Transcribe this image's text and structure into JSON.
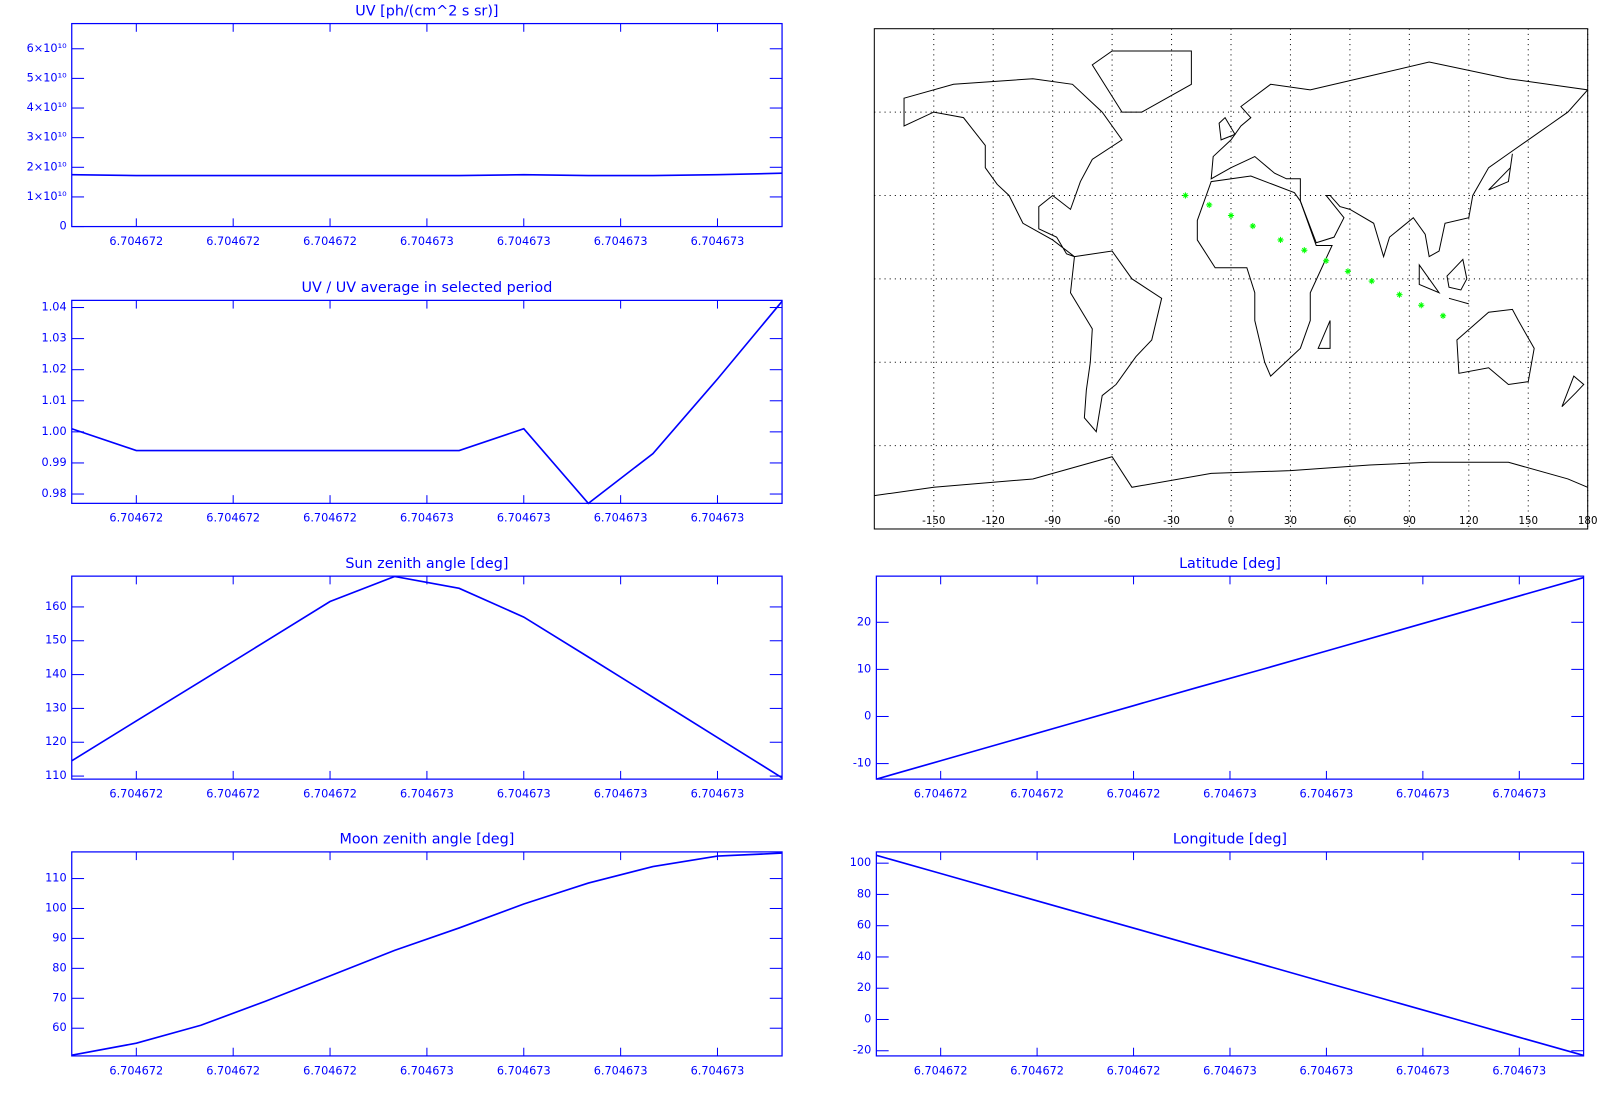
{
  "chart_data": [
    {
      "type": "line",
      "title": "UV [ph/(cm^2 s sr)]",
      "x": [
        6.704672,
        6.7046721,
        6.7046722,
        6.7046723,
        6.7046724,
        6.7046725,
        6.7046726,
        6.7046727,
        6.7046728,
        6.7046729,
        6.704673,
        6.7046731
      ],
      "values": [
        17500000000,
        17200000000,
        17200000000,
        17200000000,
        17200000000,
        17200000000,
        17200000000,
        17500000000,
        17200000000,
        17200000000,
        17500000000,
        18000000000
      ],
      "color": "#0000ff",
      "xlim": [
        6.704672,
        6.7046731
      ],
      "xticks": [
        {
          "value": 6.7046721,
          "label": "6.704672"
        },
        {
          "value": 6.70467225,
          "label": "6.704672"
        },
        {
          "value": 6.7046724,
          "label": "6.704672"
        },
        {
          "value": 6.70467255,
          "label": "6.704673"
        },
        {
          "value": 6.7046727,
          "label": "6.704673"
        },
        {
          "value": 6.70467285,
          "label": "6.704673"
        },
        {
          "value": 6.704673,
          "label": "6.704673"
        }
      ],
      "ylim": [
        0,
        68500000000
      ],
      "yticks": [
        0,
        {
          "value": 10000000000,
          "label": "1×10¹⁰"
        },
        {
          "value": 20000000000,
          "label": "2×10¹⁰"
        },
        {
          "value": 30000000000,
          "label": "3×10¹⁰"
        },
        {
          "value": 40000000000,
          "label": "4×10¹⁰"
        },
        {
          "value": 50000000000,
          "label": "5×10¹⁰"
        },
        {
          "value": 60000000000,
          "label": "6×10¹⁰"
        }
      ]
    },
    {
      "type": "line",
      "title": "UV / UV average in selected period",
      "x": [
        6.704672,
        6.7046721,
        6.7046722,
        6.7046723,
        6.7046724,
        6.7046725,
        6.7046726,
        6.7046727,
        6.7046728,
        6.7046729,
        6.704673,
        6.7046731
      ],
      "values": [
        1.001,
        0.994,
        0.994,
        0.994,
        0.994,
        0.994,
        0.994,
        1.001,
        0.977,
        0.993,
        1.017,
        1.042
      ],
      "color": "#0000ff",
      "xlim": [
        6.704672,
        6.7046731
      ],
      "xticks": [
        {
          "value": 6.7046721,
          "label": "6.704672"
        },
        {
          "value": 6.70467225,
          "label": "6.704672"
        },
        {
          "value": 6.7046724,
          "label": "6.704672"
        },
        {
          "value": 6.70467255,
          "label": "6.704673"
        },
        {
          "value": 6.7046727,
          "label": "6.704673"
        },
        {
          "value": 6.70467285,
          "label": "6.704673"
        },
        {
          "value": 6.704673,
          "label": "6.704673"
        }
      ],
      "ylim": [
        0.977,
        1.0423
      ],
      "yticks": [
        0.98,
        0.99,
        {
          "value": 1,
          "label": "1.00"
        },
        1.01,
        1.02,
        1.03,
        1.04
      ]
    },
    {
      "type": "line",
      "title": "Sun zenith angle [deg]",
      "x": [
        6.704672,
        6.7046721,
        6.7046722,
        6.7046723,
        6.7046724,
        6.7046725,
        6.7046726,
        6.7046727,
        6.7046728,
        6.7046729,
        6.704673,
        6.7046731
      ],
      "values": [
        114.5,
        126.3,
        138,
        149.8,
        161.6,
        169,
        165.5,
        157,
        145.2,
        133.3,
        121.4,
        109.5
      ],
      "color": "#0000ff",
      "xlim": [
        6.704672,
        6.7046731
      ],
      "xticks": [
        {
          "value": 6.7046721,
          "label": "6.704672"
        },
        {
          "value": 6.70467225,
          "label": "6.704672"
        },
        {
          "value": 6.7046724,
          "label": "6.704672"
        },
        {
          "value": 6.70467255,
          "label": "6.704673"
        },
        {
          "value": 6.7046727,
          "label": "6.704673"
        },
        {
          "value": 6.70467285,
          "label": "6.704673"
        },
        {
          "value": 6.704673,
          "label": "6.704673"
        }
      ],
      "ylim": [
        109.1,
        169.1
      ],
      "yticks": [
        110,
        120,
        130,
        140,
        150,
        160
      ]
    },
    {
      "type": "line",
      "title": "Moon zenith angle [deg]",
      "x": [
        6.704672,
        6.7046721,
        6.7046722,
        6.7046723,
        6.7046724,
        6.7046725,
        6.7046726,
        6.7046727,
        6.7046728,
        6.7046729,
        6.704673,
        6.7046731
      ],
      "values": [
        51,
        55,
        61,
        69,
        77.5,
        86,
        93.5,
        101.5,
        108.5,
        114,
        117.5,
        118.5
      ],
      "color": "#0000ff",
      "xlim": [
        6.704672,
        6.7046731
      ],
      "xticks": [
        {
          "value": 6.7046721,
          "label": "6.704672"
        },
        {
          "value": 6.70467225,
          "label": "6.704672"
        },
        {
          "value": 6.7046724,
          "label": "6.704672"
        },
        {
          "value": 6.70467255,
          "label": "6.704673"
        },
        {
          "value": 6.7046727,
          "label": "6.704673"
        },
        {
          "value": 6.70467285,
          "label": "6.704673"
        },
        {
          "value": 6.704673,
          "label": "6.704673"
        }
      ],
      "ylim": [
        50.75,
        118.9
      ],
      "yticks": [
        60,
        70,
        80,
        90,
        100,
        110
      ]
    },
    {
      "type": "line",
      "title": "Latitude [deg]",
      "x": [
        6.704672,
        6.7046721,
        6.7046722,
        6.7046723,
        6.7046724,
        6.7046725,
        6.7046726,
        6.7046727,
        6.7046728,
        6.7046729,
        6.704673,
        6.7046731
      ],
      "values": [
        -13.3,
        -9.4,
        -5.5,
        -1.6,
        2.3,
        6.2,
        10,
        13.9,
        17.8,
        21.7,
        25.6,
        29.5
      ],
      "color": "#0000ff",
      "xlim": [
        6.704672,
        6.7046731
      ],
      "xticks": [
        {
          "value": 6.7046721,
          "label": "6.704672"
        },
        {
          "value": 6.70467225,
          "label": "6.704672"
        },
        {
          "value": 6.7046724,
          "label": "6.704672"
        },
        {
          "value": 6.70467255,
          "label": "6.704673"
        },
        {
          "value": 6.7046727,
          "label": "6.704673"
        },
        {
          "value": 6.70467285,
          "label": "6.704673"
        },
        {
          "value": 6.704673,
          "label": "6.704673"
        }
      ],
      "ylim": [
        -13.3,
        29.8
      ],
      "yticks": [
        -10,
        0,
        10,
        20
      ]
    },
    {
      "type": "line",
      "title": "Longitude [deg]",
      "x": [
        6.704672,
        6.7046721,
        6.7046722,
        6.7046723,
        6.7046724,
        6.7046725,
        6.7046726,
        6.7046727,
        6.7046728,
        6.7046729,
        6.704673,
        6.7046731
      ],
      "values": [
        105,
        93.4,
        81.7,
        70.1,
        58.5,
        46.8,
        35.2,
        23.5,
        11.9,
        0.3,
        -11.4,
        -23
      ],
      "color": "#0000ff",
      "xlim": [
        6.704672,
        6.7046731
      ],
      "xticks": [
        {
          "value": 6.7046721,
          "label": "6.704672"
        },
        {
          "value": 6.70467225,
          "label": "6.704672"
        },
        {
          "value": 6.7046724,
          "label": "6.704672"
        },
        {
          "value": 6.70467255,
          "label": "6.704673"
        },
        {
          "value": 6.7046727,
          "label": "6.704673"
        },
        {
          "value": 6.70467285,
          "label": "6.704673"
        },
        {
          "value": 6.704673,
          "label": "6.704673"
        }
      ],
      "ylim": [
        -23.3,
        107.2
      ],
      "yticks": [
        -20,
        0,
        20,
        40,
        60,
        80,
        100
      ]
    },
    {
      "type": "map",
      "x": [
        -23,
        -11,
        0,
        11,
        25,
        37,
        48,
        59,
        71,
        85,
        96,
        107
      ],
      "values": [
        30,
        26.6,
        22.8,
        19,
        14,
        10.3,
        6.5,
        2.7,
        -0.8,
        -5.7,
        -9.5,
        -13.3
      ],
      "color": "#00ff00",
      "xlim": [
        -180,
        180
      ],
      "ylim": [
        -90,
        90
      ],
      "xticks": [
        -150,
        -120,
        -90,
        -60,
        -30,
        0,
        30,
        60,
        90,
        120,
        150,
        180
      ],
      "yticks": [
        -60,
        -30,
        0,
        30,
        60
      ],
      "grid": true
    }
  ]
}
